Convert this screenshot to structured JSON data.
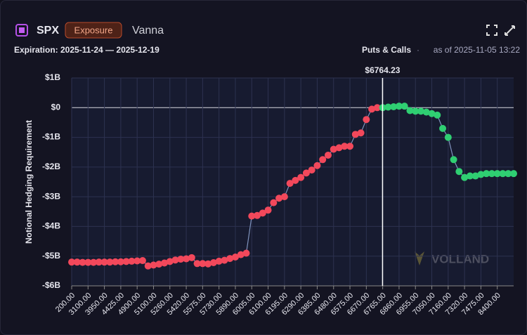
{
  "header": {
    "symbol": "SPX",
    "badge": "Exposure",
    "title": "Vanna",
    "expiration": "Expiration: 2025-11-24 — 2025-12-19",
    "filter": "Puts & Calls",
    "separator": "·",
    "as_of": "as of 2025-11-05 13:22"
  },
  "watermark": "VOLLAND",
  "chart_data": {
    "type": "line",
    "ylabel": "Notional Hedging Requirement",
    "categories": [
      "200.00",
      null,
      null,
      "3100.00",
      null,
      null,
      "3950.00",
      null,
      null,
      "4425.00",
      null,
      null,
      "4900.00",
      null,
      null,
      "5100.00",
      null,
      null,
      "5260.00",
      null,
      null,
      "5420.00",
      null,
      null,
      "5575.00",
      null,
      null,
      "5730.00",
      null,
      null,
      "5890.00",
      null,
      null,
      "6005.00",
      null,
      null,
      "6100.00",
      null,
      null,
      "6195.00",
      null,
      null,
      "6290.00",
      null,
      null,
      "6385.00",
      null,
      null,
      "6480.00",
      null,
      null,
      "6575.00",
      null,
      null,
      "6670.00",
      null,
      null,
      "6765.00",
      null,
      null,
      "6860.00",
      null,
      null,
      "6955.00",
      null,
      null,
      "7050.00",
      null,
      null,
      "7160.00",
      null,
      null,
      "7320.00",
      null,
      null,
      "7475.00",
      null,
      null,
      "8400.00",
      null,
      null,
      null
    ],
    "values": [
      -5.2,
      -5.2,
      -5.21,
      -5.21,
      -5.21,
      -5.2,
      -5.2,
      -5.2,
      -5.19,
      -5.19,
      -5.18,
      -5.17,
      -5.16,
      -5.15,
      -5.33,
      -5.3,
      -5.27,
      -5.23,
      -5.18,
      -5.13,
      -5.1,
      -5.09,
      -5.05,
      -5.25,
      -5.25,
      -5.26,
      -5.22,
      -5.17,
      -5.14,
      -5.08,
      -5.03,
      -4.95,
      -4.9,
      -3.65,
      -3.63,
      -3.55,
      -3.45,
      -3.2,
      -3.05,
      -3.0,
      -2.55,
      -2.45,
      -2.35,
      -2.2,
      -2.1,
      -1.95,
      -1.75,
      -1.6,
      -1.4,
      -1.35,
      -1.3,
      -1.3,
      -0.9,
      -0.85,
      -0.4,
      -0.05,
      0,
      0,
      0.02,
      0.03,
      0.05,
      0.05,
      -0.1,
      -0.12,
      -0.12,
      -0.15,
      -0.2,
      -0.25,
      -0.7,
      -1.0,
      -1.75,
      -2.15,
      -2.35,
      -2.3,
      -2.3,
      -2.25,
      -2.22,
      -2.22,
      -2.22,
      -2.22,
      -2.22,
      -2.22
    ],
    "line_color": "#7f93bd",
    "colors": {
      "below_spot": "#f2485b",
      "above_spot": "#2fcf72"
    },
    "spot": {
      "value": 6764.23,
      "label": "$6764.23"
    },
    "ylim": [
      -6,
      1
    ],
    "yticks": [
      {
        "value": 1,
        "label": "$1B"
      },
      {
        "value": 0,
        "label": "$0"
      },
      {
        "value": -1,
        "label": "-$1B"
      },
      {
        "value": -2,
        "label": "-$2B"
      },
      {
        "value": -3,
        "label": "-$3B"
      },
      {
        "value": -4,
        "label": "-$4B"
      },
      {
        "value": -5,
        "label": "-$5B"
      },
      {
        "value": -6,
        "label": "-$6B"
      }
    ],
    "grid": true
  }
}
